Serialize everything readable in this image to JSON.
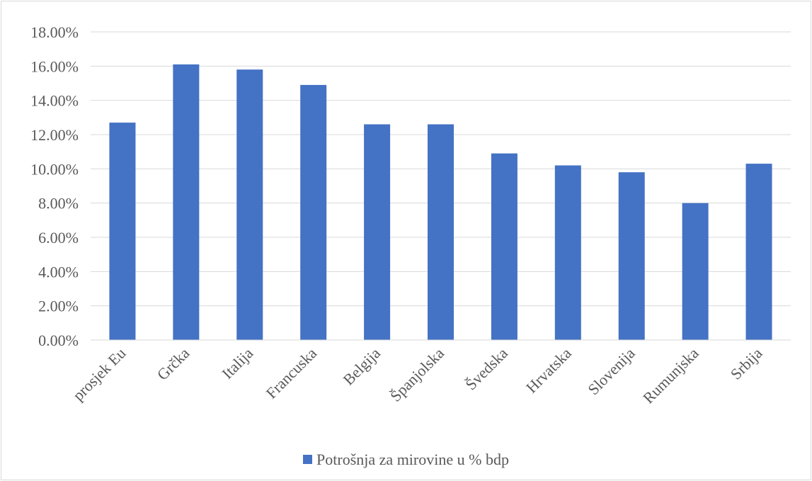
{
  "chart_data": {
    "type": "bar",
    "title": "",
    "xlabel": "",
    "ylabel": "",
    "categories": [
      "prosjek Eu",
      "Grčka",
      "Italija",
      "Francuska",
      "Belgija",
      "Španjolska",
      "Švedska",
      "Hrvatska",
      "Slovenija",
      "Rumunjska",
      "Srbija"
    ],
    "series": [
      {
        "name": "Potrošnja za mirovine u % bdp",
        "values": [
          12.7,
          16.1,
          15.8,
          14.9,
          12.6,
          12.6,
          10.9,
          10.2,
          9.8,
          8.0,
          10.3
        ],
        "color": "#4472c4"
      }
    ],
    "ylim": [
      0,
      18
    ],
    "yticks": [
      0,
      2,
      4,
      6,
      8,
      10,
      12,
      14,
      16,
      18
    ],
    "ytick_labels": [
      "0.00%",
      "2.00%",
      "4.00%",
      "6.00%",
      "8.00%",
      "10.00%",
      "12.00%",
      "14.00%",
      "16.00%",
      "18.00%"
    ],
    "grid": true,
    "legend_position": "bottom",
    "gridline_color": "#d9d9d9",
    "text_color": "#595959"
  }
}
